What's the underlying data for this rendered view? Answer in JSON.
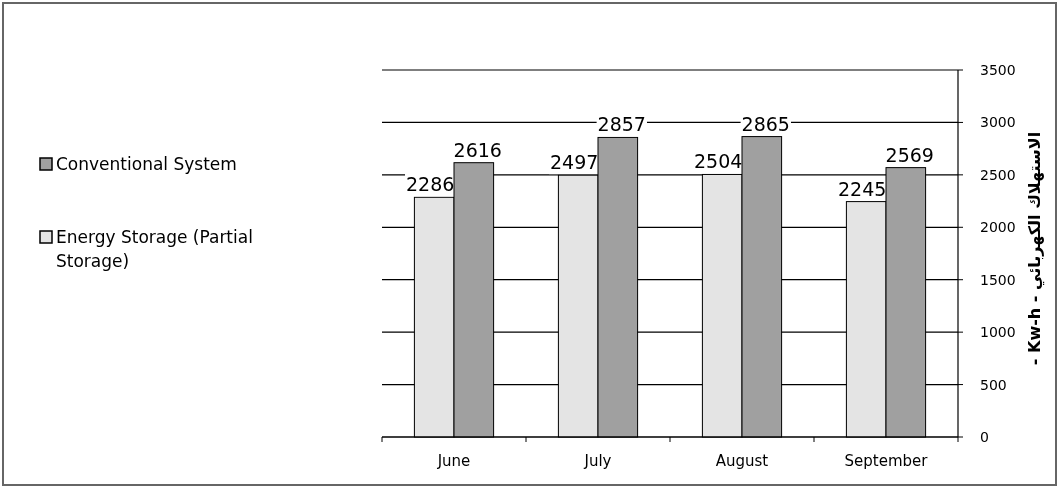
{
  "chart_data": {
    "type": "bar",
    "categories": [
      "June",
      "July",
      "August",
      "September"
    ],
    "series": [
      {
        "name": "Energy Storage (Partial Storage)",
        "color": "#e4e4e4",
        "values": [
          2286,
          2497,
          2504,
          2245
        ]
      },
      {
        "name": "Conventional System",
        "color": "#a0a0a0",
        "values": [
          2616,
          2857,
          2865,
          2569
        ]
      }
    ],
    "ylabel": "الاستهلاك الكهربائي - Kw-h -",
    "ylim": [
      0,
      3500
    ],
    "yticks": [
      0,
      500,
      1000,
      1500,
      2000,
      2500,
      3000,
      3500
    ],
    "grid": "y",
    "legend": "left",
    "data_labels": true
  }
}
